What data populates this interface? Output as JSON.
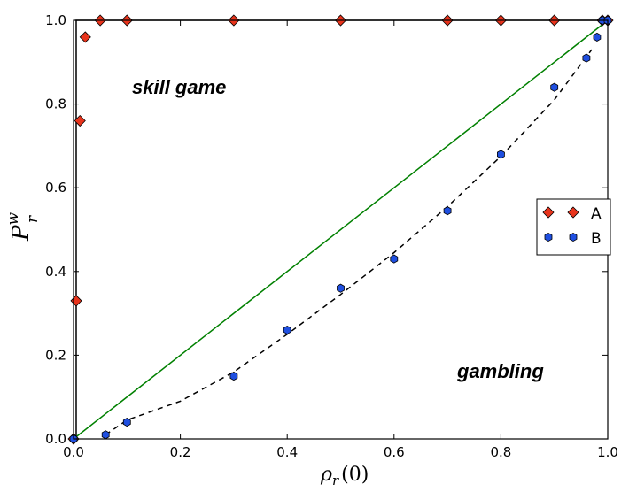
{
  "chart_data": {
    "type": "scatter",
    "xlabel": {
      "main": "ρ",
      "sub": "r",
      "arg": "(0)"
    },
    "ylabel": {
      "main": "P",
      "sub": "r",
      "sup": "w"
    },
    "xlim": [
      0,
      1
    ],
    "ylim": [
      0,
      1
    ],
    "xticks": [
      "0.0",
      "0.2",
      "0.4",
      "0.6",
      "0.8",
      "1.0"
    ],
    "yticks": [
      "0.0",
      "0.2",
      "0.4",
      "0.6",
      "0.8",
      "1.0"
    ],
    "grid": false,
    "legend_position": "center-right",
    "annotations": [
      "skill game",
      "gambling"
    ],
    "series": [
      {
        "name": "A",
        "marker": "diamond",
        "color": "#e8341c",
        "x": [
          0.0,
          0.005,
          0.012,
          0.022,
          0.05,
          0.1,
          0.3,
          0.5,
          0.7,
          0.8,
          0.9,
          0.99,
          1.0
        ],
        "y": [
          0.0,
          0.33,
          0.76,
          0.96,
          1.0,
          1.0,
          1.0,
          1.0,
          1.0,
          1.0,
          1.0,
          1.0,
          1.0
        ]
      },
      {
        "name": "B",
        "marker": "hexagon",
        "color": "#1f4fe0",
        "x": [
          0.0,
          0.06,
          0.1,
          0.3,
          0.4,
          0.5,
          0.6,
          0.7,
          0.8,
          0.9,
          0.96,
          0.98,
          0.99,
          1.0
        ],
        "y": [
          0.0,
          0.01,
          0.04,
          0.15,
          0.26,
          0.36,
          0.43,
          0.545,
          0.68,
          0.84,
          0.91,
          0.96,
          1.0,
          1.0
        ]
      }
    ],
    "lines": [
      {
        "style": "solid",
        "color": "#000000",
        "x": [
          0,
          0.005,
          0.005,
          1.0
        ],
        "y": [
          0,
          0,
          1.0,
          1.0
        ]
      },
      {
        "style": "solid",
        "color": "#008000",
        "x": [
          0,
          1
        ],
        "y": [
          0,
          1
        ]
      },
      {
        "style": "dashed",
        "color": "#000000",
        "x": [
          0.06,
          0.1,
          0.2,
          0.3,
          0.4,
          0.5,
          0.6,
          0.7,
          0.8,
          0.9,
          0.97
        ],
        "y": [
          0.01,
          0.045,
          0.09,
          0.16,
          0.25,
          0.345,
          0.445,
          0.555,
          0.675,
          0.81,
          0.93
        ]
      }
    ]
  }
}
